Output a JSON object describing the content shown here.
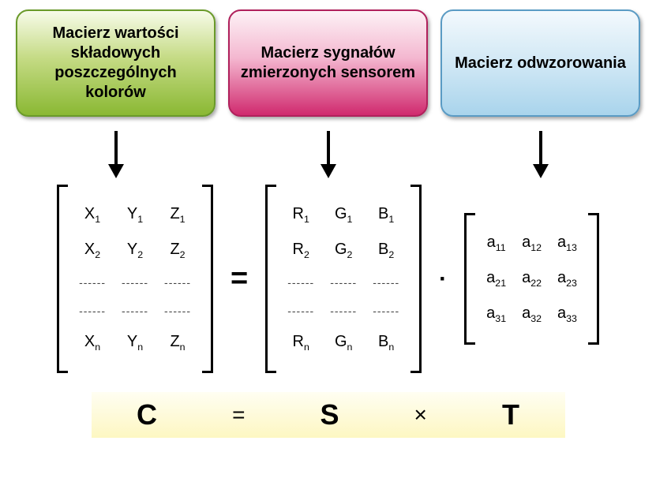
{
  "boxes": {
    "left": {
      "label": "Macierz wartości składowych poszczególnych kolorów",
      "bg": "green"
    },
    "middle": {
      "label": "Macierz sygnałów zmierzonych sensorem",
      "bg": "pink"
    },
    "right": {
      "label": "Macierz odwzorowania",
      "bg": "blue"
    }
  },
  "colors": {
    "box_green_gradient": [
      "#f7fbe9",
      "#c5db85",
      "#8ab833"
    ],
    "box_pink_gradient": [
      "#fdf2f6",
      "#f4b7d0",
      "#d02a6e"
    ],
    "box_blue_gradient": [
      "#f3f9fd",
      "#cde6f4",
      "#a9d4ec"
    ],
    "arrow": "#000000",
    "bracket": "#000000",
    "summary_bg_gradient": [
      "#fffef2",
      "#fdf7c2"
    ]
  },
  "arrows": {
    "count": 3
  },
  "matrices": {
    "C": {
      "rows": [
        [
          "X",
          "Y",
          "Z",
          "1"
        ],
        [
          "X",
          "Y",
          "Z",
          "2"
        ],
        [
          "dashes"
        ],
        [
          "dashes"
        ],
        [
          "X",
          "Y",
          "Z",
          "n"
        ]
      ]
    },
    "S": {
      "rows": [
        [
          "R",
          "G",
          "B",
          "1"
        ],
        [
          "R",
          "G",
          "B",
          "2"
        ],
        [
          "dashes"
        ],
        [
          "dashes"
        ],
        [
          "R",
          "G",
          "B",
          "n"
        ]
      ]
    },
    "T": {
      "rows": [
        [
          "a",
          "a",
          "a",
          "11",
          "12",
          "13"
        ],
        [
          "a",
          "a",
          "a",
          "21",
          "22",
          "23"
        ],
        [
          "a",
          "a",
          "a",
          "31",
          "32",
          "33"
        ]
      ]
    }
  },
  "operators": {
    "equals": "=",
    "dot": "·",
    "times": "×"
  },
  "summary": {
    "lhs": "C",
    "eq": "=",
    "mid": "S",
    "op": "×",
    "rhs": "T"
  }
}
